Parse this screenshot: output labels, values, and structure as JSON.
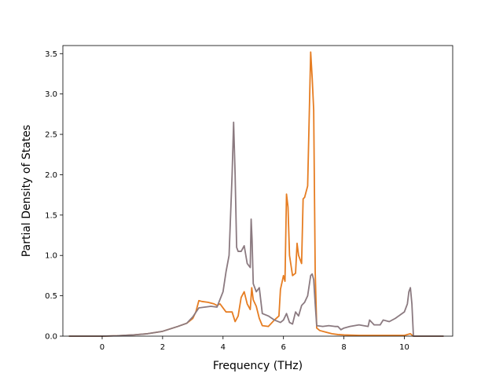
{
  "chart_data": {
    "type": "line",
    "title": "",
    "xlabel": "Frequency (THz)",
    "ylabel": "Partial Density of States",
    "xlim": [
      -1.3,
      11.6
    ],
    "ylim": [
      0,
      3.6
    ],
    "xticks": [
      0,
      2,
      4,
      6,
      8,
      10
    ],
    "yticks": [
      0.0,
      0.5,
      1.0,
      1.5,
      2.0,
      2.5,
      3.0,
      3.5
    ],
    "grid": false,
    "legend": "none",
    "series": [
      {
        "color": "#e67d22",
        "x": [
          -1.1,
          0.0,
          0.5,
          1.0,
          1.5,
          2.0,
          2.5,
          2.8,
          3.0,
          3.1,
          3.2,
          3.3,
          3.5,
          3.7,
          3.8,
          3.9,
          4.0,
          4.1,
          4.2,
          4.3,
          4.4,
          4.5,
          4.6,
          4.7,
          4.8,
          4.9,
          4.95,
          5.0,
          5.1,
          5.2,
          5.3,
          5.5,
          5.7,
          5.85,
          5.9,
          6.0,
          6.05,
          6.1,
          6.15,
          6.2,
          6.3,
          6.4,
          6.45,
          6.5,
          6.6,
          6.65,
          6.7,
          6.8,
          6.9,
          6.95,
          7.0,
          7.05,
          7.1,
          7.2,
          7.4,
          7.6,
          7.8,
          8.0,
          8.5,
          9.0,
          9.5,
          10.0,
          10.2,
          10.3,
          11.3
        ],
        "y": [
          0.0,
          0.0,
          0.005,
          0.015,
          0.03,
          0.06,
          0.12,
          0.16,
          0.22,
          0.3,
          0.44,
          0.43,
          0.42,
          0.4,
          0.38,
          0.4,
          0.35,
          0.3,
          0.3,
          0.3,
          0.18,
          0.25,
          0.48,
          0.55,
          0.4,
          0.33,
          0.6,
          0.45,
          0.37,
          0.22,
          0.13,
          0.12,
          0.2,
          0.25,
          0.58,
          0.75,
          0.68,
          1.76,
          1.6,
          1.0,
          0.75,
          0.78,
          1.15,
          1.0,
          0.9,
          1.7,
          1.72,
          1.86,
          3.52,
          3.2,
          2.8,
          0.8,
          0.1,
          0.07,
          0.05,
          0.03,
          0.02,
          0.015,
          0.01,
          0.01,
          0.01,
          0.01,
          0.03,
          0.0,
          0.0
        ]
      },
      {
        "color": "#8b7a80",
        "x": [
          -1.1,
          0.0,
          0.5,
          1.0,
          1.5,
          2.0,
          2.5,
          2.8,
          3.0,
          3.2,
          3.4,
          3.6,
          3.8,
          4.0,
          4.1,
          4.2,
          4.3,
          4.35,
          4.4,
          4.45,
          4.5,
          4.6,
          4.7,
          4.8,
          4.9,
          4.93,
          4.96,
          5.0,
          5.1,
          5.2,
          5.3,
          5.5,
          5.7,
          5.9,
          6.0,
          6.1,
          6.2,
          6.3,
          6.4,
          6.5,
          6.6,
          6.7,
          6.8,
          6.9,
          6.95,
          7.0,
          7.05,
          7.1,
          7.3,
          7.5,
          7.7,
          7.8,
          7.9,
          8.0,
          8.2,
          8.5,
          8.8,
          8.85,
          9.0,
          9.2,
          9.3,
          9.5,
          9.7,
          10.0,
          10.1,
          10.15,
          10.2,
          10.25,
          10.3,
          11.3
        ],
        "y": [
          0.0,
          0.0,
          0.005,
          0.015,
          0.03,
          0.06,
          0.12,
          0.16,
          0.24,
          0.35,
          0.36,
          0.37,
          0.36,
          0.55,
          0.8,
          1.0,
          2.0,
          2.65,
          2.0,
          1.1,
          1.05,
          1.05,
          1.12,
          0.9,
          0.85,
          1.45,
          1.2,
          0.65,
          0.55,
          0.6,
          0.28,
          0.25,
          0.2,
          0.17,
          0.2,
          0.28,
          0.17,
          0.15,
          0.3,
          0.25,
          0.38,
          0.42,
          0.5,
          0.75,
          0.77,
          0.7,
          0.4,
          0.13,
          0.12,
          0.13,
          0.12,
          0.12,
          0.08,
          0.1,
          0.12,
          0.14,
          0.12,
          0.2,
          0.14,
          0.14,
          0.2,
          0.18,
          0.22,
          0.3,
          0.4,
          0.55,
          0.6,
          0.4,
          0.0,
          0.0
        ]
      }
    ]
  }
}
